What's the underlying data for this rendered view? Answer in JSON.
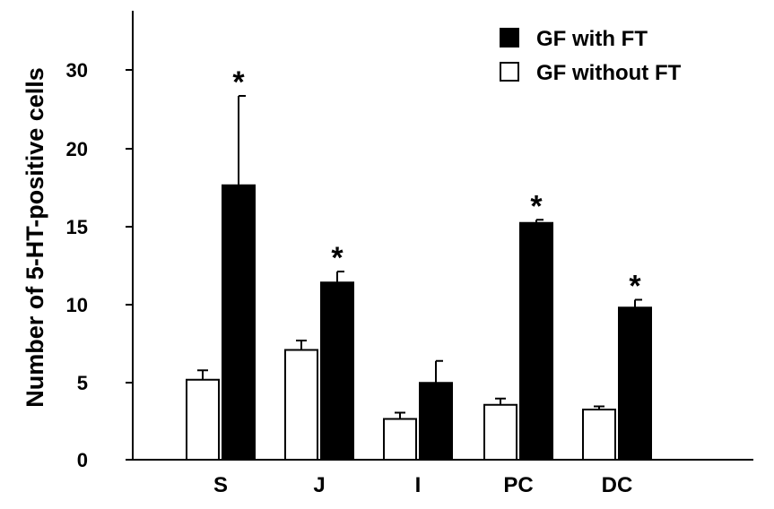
{
  "chart_data": {
    "type": "bar",
    "categories": [
      "S",
      "J",
      "I",
      "PC",
      "DC"
    ],
    "ylabel": "Number of 5-HT-positive cells",
    "xlabel": "",
    "y_ticks": [
      {
        "value": 0,
        "label": "0"
      },
      {
        "value": 5,
        "label": "5"
      },
      {
        "value": 10,
        "label": "10"
      },
      {
        "value": 15,
        "label": "15"
      },
      {
        "value": 20,
        "label": "20"
      },
      {
        "value": 30,
        "label": "30"
      }
    ],
    "ylim": [
      0,
      28.5
    ],
    "legend_position": "top-right",
    "series": [
      {
        "name": "GF with FT",
        "color": "#000000",
        "values": [
          17.5,
          11.3,
          4.9,
          15.1,
          9.7
        ],
        "errors": [
          5.7,
          0.7,
          1.4,
          0.2,
          0.5
        ],
        "significance": [
          "*",
          "*",
          "",
          "*",
          "*"
        ]
      },
      {
        "name": "GF without FT",
        "color": "#ffffff",
        "values": [
          5.1,
          7.0,
          2.6,
          3.5,
          3.2
        ],
        "errors": [
          0.6,
          0.6,
          0.4,
          0.4,
          0.2
        ],
        "significance": [
          "",
          "",
          "",
          "",
          ""
        ]
      }
    ]
  }
}
